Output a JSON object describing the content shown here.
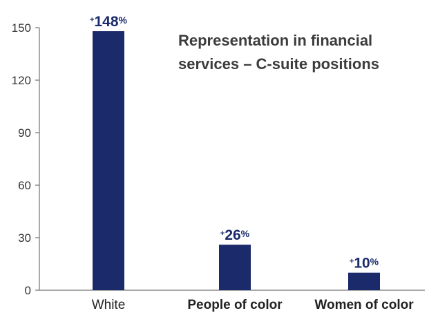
{
  "chart_data": {
    "type": "bar",
    "title": [
      "Representation in financial",
      "services – C-suite positions"
    ],
    "categories": [
      "White",
      "People of color",
      "Women of color"
    ],
    "values": [
      148,
      26,
      10
    ],
    "data_labels": [
      {
        "sign": "+",
        "number": "148",
        "unit": "%"
      },
      {
        "sign": "+",
        "number": "26",
        "unit": "%"
      },
      {
        "sign": "+",
        "number": "10",
        "unit": "%"
      }
    ],
    "yticks": [
      "0",
      "30",
      "60",
      "90",
      "120",
      "150"
    ],
    "ytick_values": [
      0,
      30,
      60,
      90,
      120,
      150
    ],
    "ylim": [
      0,
      150
    ],
    "xlabel": "",
    "ylabel": "",
    "grid": false,
    "legend": "none",
    "bar_color": "#1b2a6b",
    "axis_color": "#555555"
  }
}
